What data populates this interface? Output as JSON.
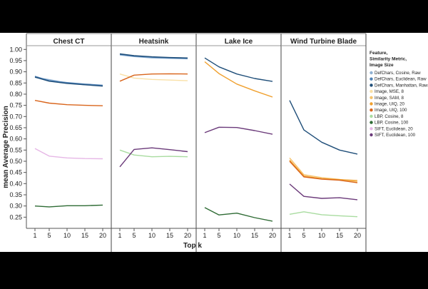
{
  "chart_data": {
    "type": "line",
    "ylabel": "mean Average Precision",
    "xlabel": "Top k",
    "x": [
      1,
      5,
      10,
      15,
      20
    ],
    "xticks": [
      "1",
      "5",
      "10",
      "15",
      "20"
    ],
    "ylim": [
      0.2,
      1.02
    ],
    "yticks": [
      "0.25",
      "0.30",
      "0.35",
      "0.40",
      "0.45",
      "0.50",
      "0.55",
      "0.60",
      "0.65",
      "0.70",
      "0.75",
      "0.80",
      "0.85",
      "0.90",
      "0.95",
      "1.00"
    ],
    "grid": false,
    "legend": {
      "title": [
        "Feature,",
        "Similarity Metric,",
        "Image Size"
      ],
      "position": "right",
      "entries": [
        {
          "name": "DefChars, Cosine, Raw",
          "color": "#8fb1d3"
        },
        {
          "name": "DefChars, Euclidean, Raw",
          "color": "#4f81b5"
        },
        {
          "name": "DefChars, Manhattan, Raw",
          "color": "#1f4e79"
        },
        {
          "name": "Image, MSE, 8",
          "color": "#f9e0a6"
        },
        {
          "name": "Image, SAM, 8",
          "color": "#f5c26b"
        },
        {
          "name": "Image, UIQ, 20",
          "color": "#f0a02e"
        },
        {
          "name": "Image, UIQ, 100",
          "color": "#d9651c"
        },
        {
          "name": "LBP, Cosine, 8",
          "color": "#a9dca0"
        },
        {
          "name": "LBP, Cosine, 100",
          "color": "#2e6b34"
        },
        {
          "name": "SIFT, Euclidean, 20",
          "color": "#e6b7e6"
        },
        {
          "name": "SIFT, Euclidean, 100",
          "color": "#6b3a7a"
        }
      ]
    },
    "panels": [
      {
        "title": "Chest CT",
        "series": [
          {
            "name": "DefChars, Cosine, Raw",
            "values": [
              0.875,
              0.865,
              0.85,
              0.842,
              0.838
            ]
          },
          {
            "name": "DefChars, Euclidean, Raw",
            "values": [
              0.88,
              0.86,
              0.852,
              0.845,
              0.84
            ]
          },
          {
            "name": "DefChars, Manhattan, Raw",
            "values": [
              0.876,
              0.858,
              0.848,
              0.842,
              0.836
            ]
          },
          {
            "name": "Image, UIQ, 100",
            "values": [
              0.772,
              0.76,
              0.753,
              0.75,
              0.748
            ]
          },
          {
            "name": "SIFT, Euclidean, 20",
            "values": [
              0.557,
              0.523,
              0.515,
              0.512,
              0.511
            ]
          },
          {
            "name": "LBP, Cosine, 100",
            "values": [
              0.3,
              0.296,
              0.301,
              0.301,
              0.304
            ]
          }
        ]
      },
      {
        "title": "Heatsink",
        "series": [
          {
            "name": "DefChars, Cosine, Raw",
            "values": [
              0.975,
              0.968,
              0.962,
              0.96,
              0.958
            ]
          },
          {
            "name": "DefChars, Euclidean, Raw",
            "values": [
              0.978,
              0.97,
              0.965,
              0.962,
              0.96
            ]
          },
          {
            "name": "DefChars, Manhattan, Raw",
            "values": [
              0.98,
              0.972,
              0.967,
              0.964,
              0.962
            ]
          },
          {
            "name": "Image, MSE, 8",
            "values": [
              0.89,
              0.872,
              0.866,
              0.863,
              0.86
            ]
          },
          {
            "name": "Image, UIQ, 100",
            "values": [
              0.858,
              0.885,
              0.89,
              0.891,
              0.89
            ]
          },
          {
            "name": "LBP, Cosine, 8",
            "values": [
              0.55,
              0.528,
              0.52,
              0.522,
              0.52
            ]
          },
          {
            "name": "SIFT, Euclidean, 100",
            "values": [
              0.475,
              0.553,
              0.56,
              0.552,
              0.543
            ]
          }
        ]
      },
      {
        "title": "Lake Ice",
        "series": [
          {
            "name": "DefChars, Manhattan, Raw",
            "values": [
              0.962,
              0.922,
              0.89,
              0.87,
              0.857
            ]
          },
          {
            "name": "Image, UIQ, 20",
            "values": [
              0.945,
              0.892,
              0.845,
              0.815,
              0.787
            ]
          },
          {
            "name": "SIFT, Euclidean, 100",
            "values": [
              0.628,
              0.652,
              0.651,
              0.637,
              0.621
            ]
          },
          {
            "name": "LBP, Cosine, 100",
            "values": [
              0.293,
              0.26,
              0.268,
              0.248,
              0.232
            ]
          }
        ]
      },
      {
        "title": "Wind Turbine Blade",
        "series": [
          {
            "name": "DefChars, Manhattan, Raw",
            "values": [
              0.772,
              0.64,
              0.585,
              0.55,
              0.532
            ]
          },
          {
            "name": "Image, SAM, 8",
            "values": [
              0.515,
              0.44,
              0.427,
              0.419,
              0.408
            ]
          },
          {
            "name": "Image, UIQ, 20",
            "values": [
              0.505,
              0.434,
              0.422,
              0.418,
              0.414
            ]
          },
          {
            "name": "Image, UIQ, 100",
            "values": [
              0.5,
              0.43,
              0.42,
              0.415,
              0.404
            ]
          },
          {
            "name": "SIFT, Euclidean, 100",
            "values": [
              0.398,
              0.343,
              0.334,
              0.337,
              0.328
            ]
          },
          {
            "name": "LBP, Cosine, 8",
            "values": [
              0.263,
              0.274,
              0.261,
              0.256,
              0.252
            ]
          }
        ]
      }
    ]
  }
}
